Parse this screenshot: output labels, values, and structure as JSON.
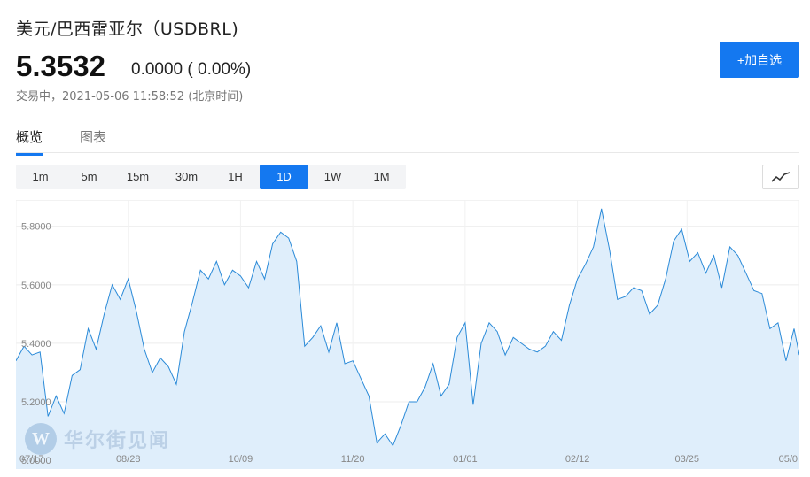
{
  "header": {
    "title": "美元/巴西雷亚尔（USDBRL)",
    "price": "5.3532",
    "change": "0.0000 ( 0.00%)",
    "status": "交易中，2021-05-06 11:58:52 (北京时间)",
    "add_button": "+加自选"
  },
  "tabs": [
    {
      "label": "概览",
      "active": true
    },
    {
      "label": "图表",
      "active": false
    }
  ],
  "periods": [
    "1m",
    "5m",
    "15m",
    "30m",
    "1H",
    "1D",
    "1W",
    "1M"
  ],
  "active_period": "1D",
  "chart_type_icon": "line-chart-icon",
  "watermark": {
    "text": "华尔街见闻",
    "logo": "W"
  },
  "colors": {
    "accent": "#1478f0",
    "line": "#2a8ad8",
    "area": "#dfeefb"
  },
  "chart_data": {
    "type": "area",
    "title": "",
    "xlabel": "",
    "ylabel": "",
    "ylim": [
      4.97,
      5.89
    ],
    "yticks": [
      5.0,
      5.2,
      5.4,
      5.6,
      5.8
    ],
    "ytick_labels": [
      "5.0000",
      "5.2000",
      "5.4000",
      "5.6000",
      "5.8000"
    ],
    "xticks": [
      {
        "label": "07/17",
        "x": "2020-07-17"
      },
      {
        "label": "08/28",
        "x": "2020-08-28"
      },
      {
        "label": "10/09",
        "x": "2020-10-09"
      },
      {
        "label": "11/20",
        "x": "2020-11-20"
      },
      {
        "label": "01/01",
        "x": "2021-01-01"
      },
      {
        "label": "02/12",
        "x": "2021-02-12"
      },
      {
        "label": "03/25",
        "x": "2021-03-25"
      },
      {
        "label": "05/0",
        "x": "2021-05-06"
      }
    ],
    "x_range": [
      "2020-07-17",
      "2021-05-06"
    ],
    "grid": true,
    "series": [
      {
        "x": [
          "2020-07-17",
          "2020-07-20",
          "2020-07-23",
          "2020-07-26",
          "2020-07-29",
          "2020-08-01",
          "2020-08-04",
          "2020-08-07",
          "2020-08-10",
          "2020-08-13",
          "2020-08-16",
          "2020-08-19",
          "2020-08-22",
          "2020-08-25",
          "2020-08-28",
          "2020-08-31",
          "2020-09-03",
          "2020-09-06",
          "2020-09-09",
          "2020-09-12",
          "2020-09-15",
          "2020-09-18",
          "2020-09-21",
          "2020-09-24",
          "2020-09-27",
          "2020-09-30",
          "2020-10-03",
          "2020-10-06",
          "2020-10-09",
          "2020-10-12",
          "2020-10-15",
          "2020-10-18",
          "2020-10-21",
          "2020-10-24",
          "2020-10-27",
          "2020-10-30",
          "2020-11-02",
          "2020-11-05",
          "2020-11-08",
          "2020-11-11",
          "2020-11-14",
          "2020-11-17",
          "2020-11-20",
          "2020-11-23",
          "2020-11-26",
          "2020-11-29",
          "2020-12-02",
          "2020-12-05",
          "2020-12-08",
          "2020-12-11",
          "2020-12-14",
          "2020-12-17",
          "2020-12-20",
          "2020-12-23",
          "2020-12-26",
          "2020-12-29",
          "2021-01-01",
          "2021-01-04",
          "2021-01-07",
          "2021-01-10",
          "2021-01-13",
          "2021-01-16",
          "2021-01-19",
          "2021-01-22",
          "2021-01-25",
          "2021-01-28",
          "2021-01-31",
          "2021-02-03",
          "2021-02-06",
          "2021-02-09",
          "2021-02-12",
          "2021-02-15",
          "2021-02-18",
          "2021-02-21",
          "2021-02-24",
          "2021-02-27",
          "2021-03-02",
          "2021-03-05",
          "2021-03-08",
          "2021-03-11",
          "2021-03-14",
          "2021-03-17",
          "2021-03-20",
          "2021-03-23",
          "2021-03-26",
          "2021-03-29",
          "2021-04-01",
          "2021-04-04",
          "2021-04-07",
          "2021-04-10",
          "2021-04-13",
          "2021-04-16",
          "2021-04-19",
          "2021-04-22",
          "2021-04-25",
          "2021-04-28",
          "2021-05-01",
          "2021-05-04",
          "2021-05-06"
        ],
        "values": [
          5.34,
          5.39,
          5.36,
          5.37,
          5.15,
          5.22,
          5.16,
          5.29,
          5.31,
          5.45,
          5.38,
          5.5,
          5.6,
          5.55,
          5.62,
          5.51,
          5.38,
          5.3,
          5.35,
          5.32,
          5.26,
          5.44,
          5.54,
          5.65,
          5.62,
          5.68,
          5.6,
          5.65,
          5.63,
          5.59,
          5.68,
          5.62,
          5.74,
          5.78,
          5.76,
          5.68,
          5.39,
          5.42,
          5.46,
          5.37,
          5.47,
          5.33,
          5.34,
          5.28,
          5.22,
          5.06,
          5.09,
          5.05,
          5.12,
          5.2,
          5.2,
          5.25,
          5.33,
          5.22,
          5.26,
          5.42,
          5.47,
          5.19,
          5.4,
          5.47,
          5.44,
          5.36,
          5.42,
          5.4,
          5.38,
          5.37,
          5.39,
          5.44,
          5.41,
          5.53,
          5.62,
          5.67,
          5.73,
          5.86,
          5.72,
          5.55,
          5.56,
          5.59,
          5.58,
          5.5,
          5.53,
          5.62,
          5.75,
          5.79,
          5.68,
          5.71,
          5.64,
          5.7,
          5.59,
          5.73,
          5.7,
          5.64,
          5.58,
          5.57,
          5.45,
          5.47,
          5.34,
          5.45,
          5.36
        ]
      }
    ]
  }
}
